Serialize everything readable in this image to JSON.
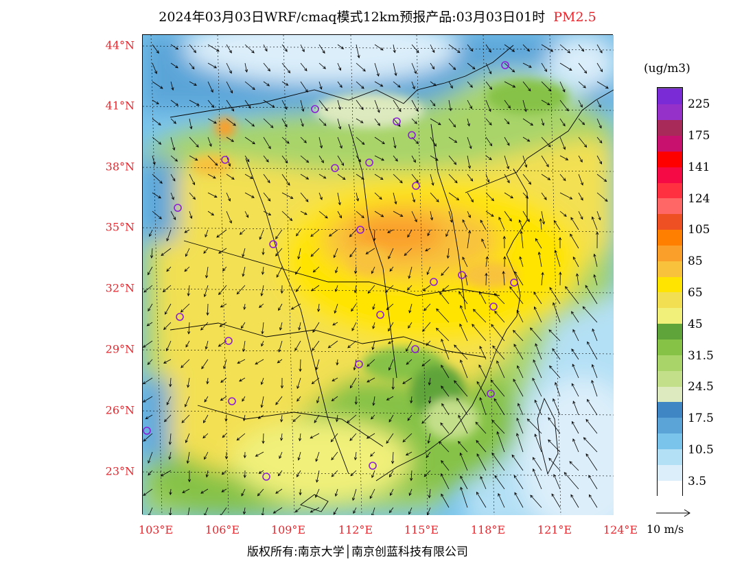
{
  "header": {
    "title": "2024年03月03日WRF/cmaq模式12km预报产品:03月03日01时",
    "species": "PM2.5"
  },
  "axes": {
    "lat_labels": [
      "44°N",
      "41°N",
      "38°N",
      "35°N",
      "32°N",
      "29°N",
      "26°N",
      "23°N"
    ],
    "lon_labels": [
      "103°E",
      "106°E",
      "109°E",
      "112°E",
      "115°E",
      "118°E",
      "121°E",
      "124°E"
    ]
  },
  "colorbar": {
    "units": "(ug/m3)",
    "colors": [
      "#ffffff",
      "#dbeefa",
      "#b4e0f5",
      "#7ac4ec",
      "#5aa4d8",
      "#3f86c4",
      "#dde9be",
      "#c4df8a",
      "#a8d46a",
      "#86c246",
      "#5fa43a",
      "#f0f07a",
      "#f3e052",
      "#ffe400",
      "#f8c23c",
      "#fa9f2a",
      "#ff8000",
      "#ee5024",
      "#ff6666",
      "#ff3040",
      "#f50a46",
      "#ff0000",
      "#c8106e",
      "#a82a58",
      "#9530c8",
      "#7b2bd6"
    ],
    "labels": [
      "3.5",
      "10.5",
      "17.5",
      "24.5",
      "31.5",
      "45",
      "65",
      "85",
      "105",
      "124",
      "141",
      "175",
      "225"
    ]
  },
  "wind_reference": {
    "label": "10 m/s"
  },
  "footer": {
    "copyright": "版权所有:南京大学│南京创蓝科技有限公司"
  }
}
